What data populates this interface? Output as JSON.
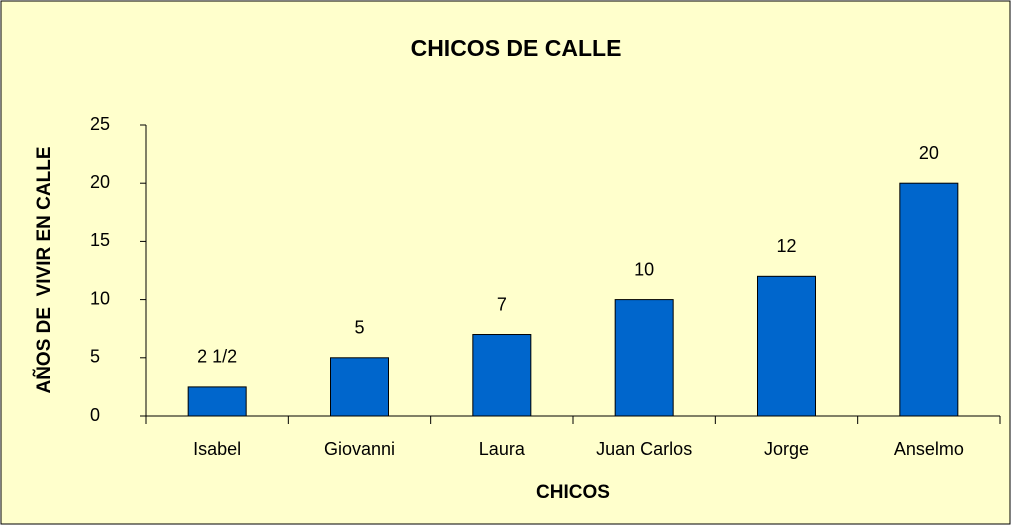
{
  "chart_data": {
    "type": "bar",
    "title": "CHICOS DE CALLE",
    "x_label": "CHICOS",
    "y_label": "AÑOS DE  VIVIR EN CALLE",
    "categories": [
      "Isabel",
      "Giovanni",
      "Laura",
      "Juan Carlos",
      "Jorge",
      "Anselmo"
    ],
    "values": [
      2.5,
      5,
      7,
      10,
      12,
      20
    ],
    "value_labels": [
      "2 1/2",
      "5",
      "7",
      "10",
      "12",
      "20"
    ],
    "color": "#0066cc",
    "ylim": [
      0,
      25
    ],
    "yticks": [
      0,
      5,
      10,
      15,
      20,
      25
    ],
    "grid": false
  }
}
